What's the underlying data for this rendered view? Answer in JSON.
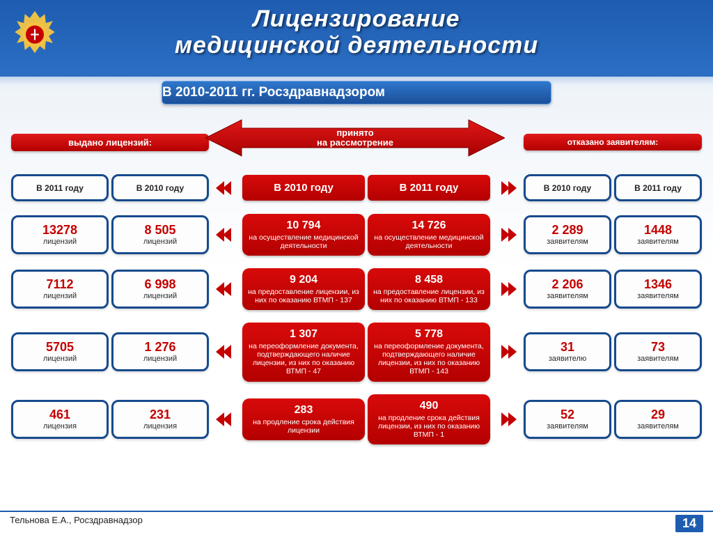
{
  "colors": {
    "blue_dark": "#1e5cb0",
    "blue_light": "#2b6fc4",
    "red_grad_top": "#d80a0a",
    "red_grad_bottom": "#b40000",
    "box_border": "#164a8d",
    "num_color": "#c40000",
    "bg_pale": "#eef3f9"
  },
  "header": {
    "title_line1": "Лицензирование",
    "title_line2": "медицинской деятельности",
    "subtitle": "В 2010-2011 гг. Росздравнадзором"
  },
  "section_labels": {
    "issued": "выдано лицензий:",
    "accepted": "принято на рассмотрение",
    "refused": "отказано заявителям:"
  },
  "year_headers": {
    "issued_2011": "В 2011 году",
    "issued_2010": "В 2010 году",
    "center_2010": "В 2010 году",
    "center_2011": "В 2011 году",
    "refused_2010": "В 2010 году",
    "refused_2011": "В 2011 году"
  },
  "rows": [
    {
      "issued_2011": {
        "num": "13278",
        "lbl": "лицензий"
      },
      "issued_2010": {
        "num": "8 505",
        "lbl": "лицензий"
      },
      "center_2010": {
        "n": "10 794",
        "t": "на осуществление медицинской деятельности"
      },
      "center_2011": {
        "n": "14 726",
        "t": "на осуществление медицинской деятельности"
      },
      "refused_2010": {
        "num": "2 289",
        "lbl": "заявителям"
      },
      "refused_2011": {
        "num": "1448",
        "lbl": "заявителям"
      }
    },
    {
      "issued_2011": {
        "num": "7112",
        "lbl": "лицензий"
      },
      "issued_2010": {
        "num": "6 998",
        "lbl": "лицензий"
      },
      "center_2010": {
        "n": "9 204",
        "t": "на предоставление лицензии, из них по оказанию ВТМП - 137"
      },
      "center_2011": {
        "n": "8 458",
        "t": "на предоставление лицензии, из них по оказанию ВТМП - 133"
      },
      "refused_2010": {
        "num": "2 206",
        "lbl": "заявителям"
      },
      "refused_2011": {
        "num": "1346",
        "lbl": "заявителям"
      }
    },
    {
      "issued_2011": {
        "num": "5705",
        "lbl": "лицензий"
      },
      "issued_2010": {
        "num": "1 276",
        "lbl": "лицензий"
      },
      "center_2010": {
        "n": "1 307",
        "t": "на переоформление документа, подтверждающего наличие лицензии, из них по оказанию ВТМП - 47"
      },
      "center_2011": {
        "n": "5 778",
        "t": "на переоформление документа, подтверждающего наличие лицензии, из них по оказанию ВТМП - 143"
      },
      "refused_2010": {
        "num": "31",
        "lbl": "заявителю"
      },
      "refused_2011": {
        "num": "73",
        "lbl": "заявителям"
      }
    },
    {
      "issued_2011": {
        "num": "461",
        "lbl": "лицензия"
      },
      "issued_2010": {
        "num": "231",
        "lbl": "лицензия"
      },
      "center_2010": {
        "n": "283",
        "t": "на продление срока действия лицензии"
      },
      "center_2011": {
        "n": "490",
        "t": "на продление срока действия лицензии, из них по оказанию ВТМП - 1"
      },
      "refused_2010": {
        "num": "52",
        "lbl": "заявителям"
      },
      "refused_2011": {
        "num": "29",
        "lbl": "заявителям"
      }
    }
  ],
  "footer": {
    "author": "Тельнова Е.А., Росздравнадзор",
    "page": "14"
  }
}
